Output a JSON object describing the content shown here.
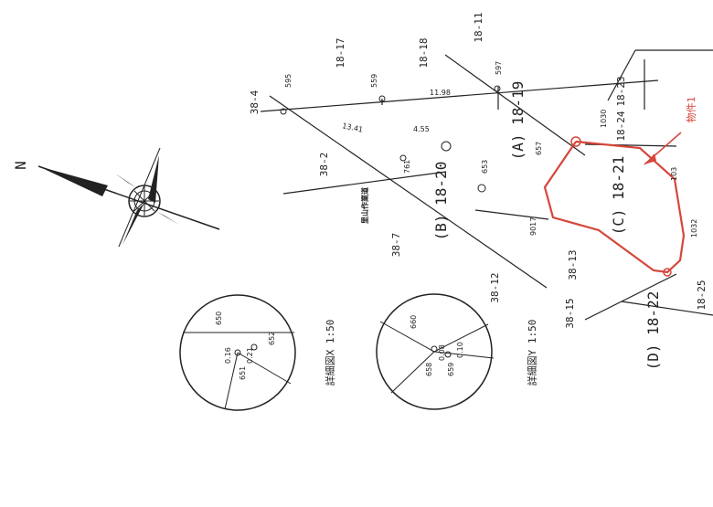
{
  "compass": {
    "north_label": "N"
  },
  "detail_x": {
    "title": "詳細図X 1:50",
    "points": [
      "650",
      "652",
      "651",
      "0.16",
      "0.21"
    ]
  },
  "detail_y": {
    "title": "詳細図Y 1:50",
    "points": [
      "660",
      "658",
      "659",
      "0.08",
      "0.10"
    ]
  },
  "parcels": {
    "p18_17": "18-17",
    "p18_18": "18-18",
    "p18_11": "18-11",
    "p18_23": "18-23",
    "p18_24": "18-24",
    "p38_4": "38-4",
    "p38_2": "38-2",
    "p38_7": "38-7",
    "p38_12": "38-12",
    "p38_13": "38-13",
    "p38_15": "38-15",
    "p18_25": "18-25"
  },
  "areas": {
    "A": "(A) 18-19",
    "B": "(B) 18-20",
    "C": "(C) 18-21",
    "D": "(D) 18-22"
  },
  "points": {
    "595": "595",
    "559": "559",
    "597": "597",
    "761": "761",
    "653": "653",
    "657": "657",
    "9017": "9017",
    "1030": "1030",
    "103": "103",
    "1032": "1032"
  },
  "distances": {
    "d1": "13.41",
    "d2": "11.98",
    "d3": "4.55"
  },
  "road_label": "里山作業道",
  "callout": "物件1",
  "colors": {
    "boundary": "#d6453a",
    "ink": "#222222"
  }
}
